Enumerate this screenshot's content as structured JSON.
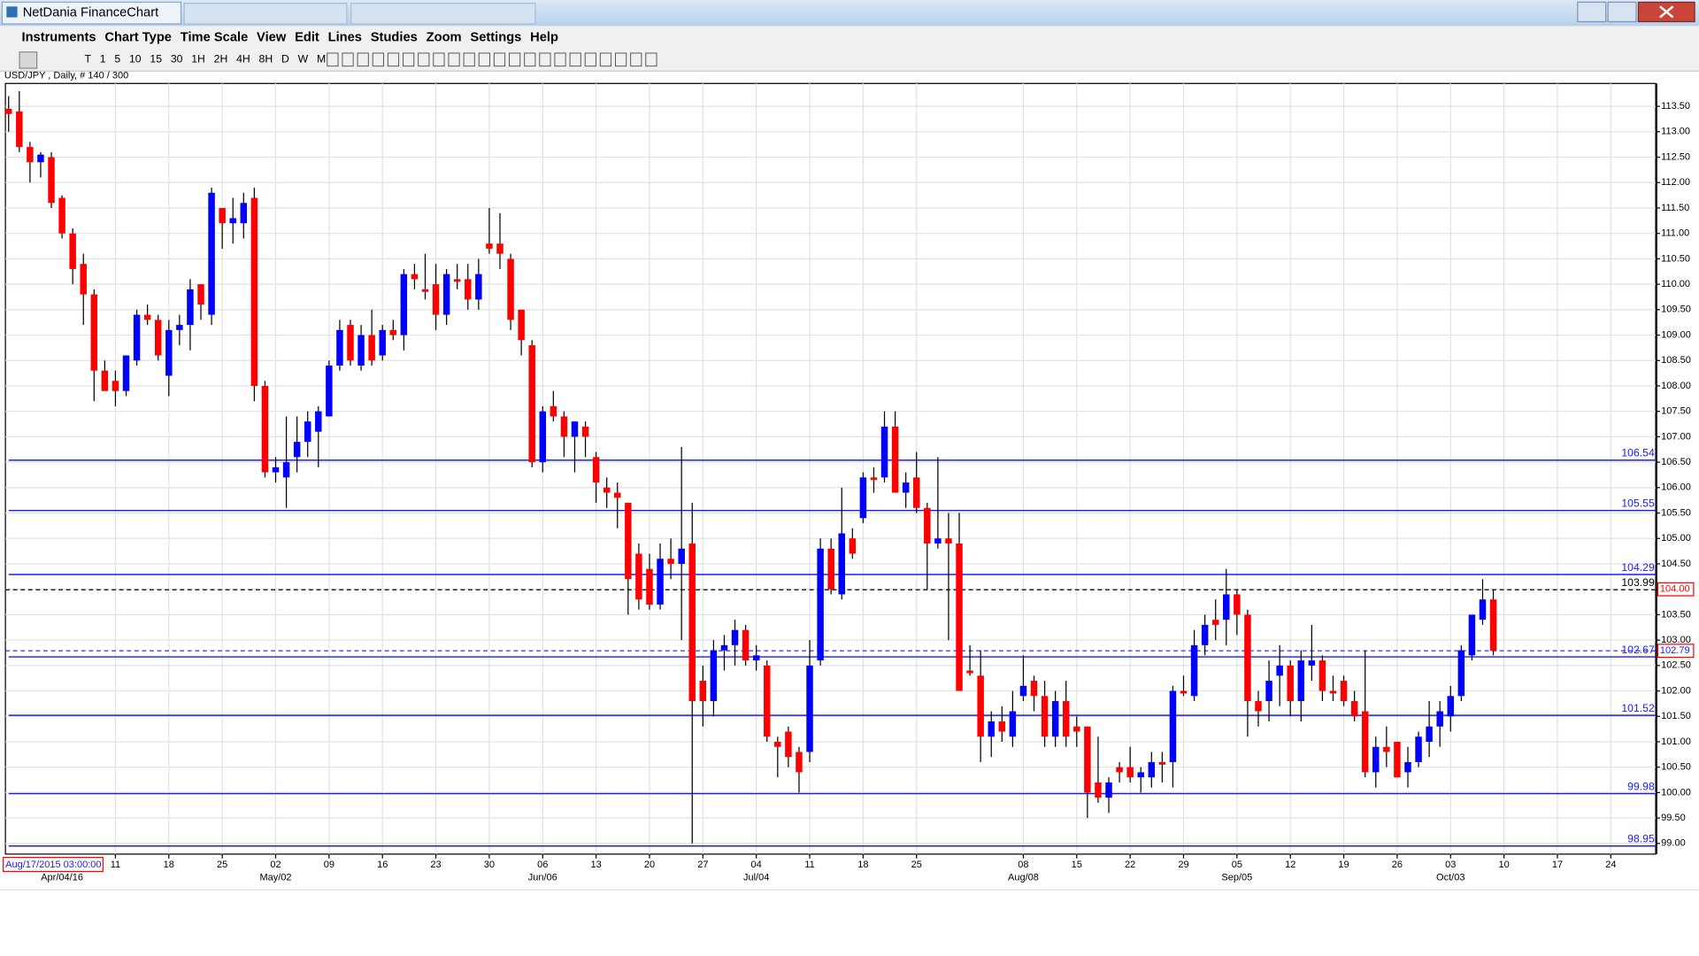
{
  "window": {
    "title": "NetDania FinanceChart"
  },
  "menu": [
    "Instruments",
    "Chart Type",
    "Time Scale",
    "View",
    "Edit",
    "Lines",
    "Studies",
    "Zoom",
    "Settings",
    "Help"
  ],
  "toolbar": [
    "T",
    "1",
    "5",
    "10",
    "15",
    "30",
    "1H",
    "2H",
    "4H",
    "8H",
    "D",
    "W",
    "M"
  ],
  "chart_info": "USD/JPY , Daily, # 140 / 300",
  "cursor_date": "Aug/17/2015 03:00:00",
  "chart_data": {
    "type": "candlestick",
    "up_color": "#0000ff",
    "down_color": "#ff0000",
    "grid": true,
    "categories": [
      null,
      null,
      null,
      null,
      null,
      null,
      null,
      null,
      null,
      null,
      null,
      null,
      null,
      null,
      null,
      null,
      null,
      null,
      null,
      null,
      null,
      null,
      null,
      null,
      null,
      null,
      null,
      null,
      null,
      null,
      null,
      null,
      null,
      null,
      null,
      null,
      null,
      null,
      null,
      null,
      null,
      null,
      null,
      null,
      null,
      null,
      null,
      null,
      null,
      null,
      null,
      null,
      null,
      null,
      null,
      null,
      null,
      null,
      null,
      null,
      null,
      null,
      null,
      null,
      null,
      null,
      null,
      null,
      null,
      null,
      null,
      null,
      null,
      null,
      null,
      null,
      null,
      null,
      null,
      null,
      null,
      null,
      null,
      null,
      null,
      null,
      null,
      null,
      null,
      null,
      null,
      null,
      null,
      null,
      null,
      null,
      null,
      null,
      null,
      null,
      null,
      null,
      null,
      null,
      null,
      null,
      null,
      null,
      null,
      null,
      null,
      null,
      null,
      null,
      null,
      null,
      null,
      null,
      null,
      null,
      null,
      null,
      null,
      null,
      null,
      null,
      null,
      null,
      null,
      null,
      null,
      null,
      null,
      null,
      null,
      null,
      null,
      null,
      null,
      null
    ],
    "open": [
      113.45,
      113.4,
      112.7,
      112.4,
      112.5,
      111.7,
      111.0,
      110.4,
      109.8,
      108.3,
      108.1,
      107.9,
      108.5,
      109.4,
      109.3,
      108.2,
      109.1,
      109.2,
      110.0,
      109.4,
      111.5,
      111.2,
      111.2,
      111.7,
      108.0,
      106.3,
      106.2,
      106.6,
      106.9,
      107.1,
      107.4,
      108.4,
      109.2,
      108.4,
      109.0,
      108.6,
      109.1,
      109.0,
      110.2,
      109.9,
      110.0,
      109.4,
      110.1,
      110.1,
      109.7,
      110.8,
      110.8,
      110.5,
      109.5,
      108.8,
      106.5,
      107.6,
      107.4,
      107.0,
      107.2,
      106.6,
      106.0,
      105.9,
      105.7,
      104.7,
      104.4,
      103.7,
      104.6,
      104.5,
      104.9,
      102.2,
      101.8,
      102.8,
      102.9,
      103.2,
      102.6,
      102.5,
      101.0,
      101.2,
      100.8,
      100.8,
      102.6,
      104.8,
      103.9,
      105.0,
      105.4,
      106.2,
      106.2,
      107.2,
      105.9,
      106.2,
      105.6,
      104.9,
      105.0,
      104.9,
      102.4,
      102.3,
      101.1,
      101.4,
      101.1,
      101.9,
      102.2,
      101.9,
      101.1,
      101.8,
      101.3,
      101.3,
      100.2,
      99.9,
      100.5,
      100.5,
      100.3,
      100.3,
      100.6,
      100.6,
      102.0,
      101.9,
      102.9,
      103.4,
      103.4,
      103.9,
      103.5,
      101.8,
      101.8,
      102.3,
      102.5,
      101.8,
      102.5,
      102.6,
      102.0,
      102.2,
      101.8,
      101.6,
      100.4,
      100.9,
      101.0,
      100.4,
      100.6,
      101.0,
      101.3,
      101.5,
      101.9,
      102.7,
      103.4,
      103.8
    ],
    "high": [
      113.7,
      113.8,
      112.8,
      112.6,
      112.6,
      111.75,
      111.1,
      110.6,
      109.9,
      108.5,
      108.3,
      108.6,
      109.5,
      109.6,
      109.4,
      109.3,
      109.4,
      110.1,
      110.0,
      111.9,
      111.5,
      111.7,
      111.8,
      111.9,
      108.1,
      106.6,
      107.4,
      107.4,
      107.5,
      107.6,
      108.5,
      109.3,
      109.3,
      109.2,
      109.5,
      109.2,
      109.3,
      110.3,
      110.4,
      110.6,
      110.4,
      110.3,
      110.4,
      110.4,
      110.5,
      111.5,
      111.4,
      110.6,
      109.5,
      108.9,
      107.6,
      107.9,
      107.5,
      107.3,
      107.3,
      106.7,
      106.2,
      106.1,
      105.7,
      104.9,
      104.7,
      104.9,
      105.0,
      106.8,
      105.7,
      102.5,
      103.0,
      103.1,
      103.4,
      103.3,
      102.9,
      102.6,
      101.1,
      101.3,
      100.9,
      103.0,
      105.0,
      105.0,
      106.0,
      105.2,
      106.3,
      106.4,
      107.5,
      107.5,
      106.3,
      106.7,
      105.7,
      106.6,
      105.5,
      105.5,
      102.9,
      102.8,
      101.6,
      101.7,
      102.0,
      102.7,
      102.3,
      102.2,
      102.0,
      102.2,
      101.5,
      101.3,
      101.1,
      100.3,
      100.6,
      100.9,
      100.5,
      100.8,
      100.8,
      102.1,
      102.3,
      103.2,
      103.5,
      103.8,
      104.4,
      104.0,
      103.6,
      102.0,
      102.6,
      102.9,
      102.6,
      102.8,
      103.3,
      102.7,
      102.3,
      102.3,
      102.0,
      102.8,
      101.1,
      101.3,
      101.0,
      100.9,
      101.2,
      101.8,
      101.8,
      102.1,
      102.9,
      103.5,
      104.2,
      104.0
    ],
    "low": [
      113.0,
      112.6,
      112.0,
      112.1,
      111.5,
      110.9,
      110.0,
      109.2,
      107.7,
      107.9,
      107.6,
      107.8,
      108.4,
      109.2,
      108.5,
      107.8,
      108.8,
      108.7,
      109.3,
      109.2,
      110.7,
      110.8,
      110.9,
      107.7,
      106.2,
      106.1,
      105.6,
      106.3,
      106.6,
      106.4,
      107.4,
      108.3,
      108.4,
      108.3,
      108.4,
      108.5,
      108.9,
      108.7,
      109.9,
      109.7,
      109.1,
      109.2,
      109.9,
      109.5,
      109.5,
      110.6,
      110.3,
      109.1,
      108.6,
      106.4,
      106.3,
      107.3,
      106.6,
      106.3,
      106.6,
      105.7,
      105.6,
      105.2,
      103.5,
      103.6,
      103.6,
      103.6,
      104.2,
      103.0,
      99.0,
      101.3,
      101.5,
      102.4,
      102.5,
      102.5,
      102.4,
      101.0,
      100.3,
      100.5,
      100.0,
      100.6,
      102.5,
      103.9,
      103.8,
      104.6,
      105.3,
      105.9,
      106.1,
      105.9,
      105.6,
      105.5,
      104.0,
      104.8,
      103.0,
      102.0,
      102.3,
      100.6,
      100.7,
      101.0,
      100.9,
      101.8,
      101.6,
      100.9,
      100.9,
      100.9,
      100.9,
      99.5,
      99.8,
      99.6,
      100.2,
      100.2,
      100.0,
      100.1,
      100.2,
      100.1,
      101.9,
      101.8,
      102.7,
      103.0,
      102.9,
      103.1,
      101.1,
      101.3,
      101.4,
      101.7,
      101.5,
      101.4,
      102.2,
      101.8,
      101.8,
      101.7,
      101.4,
      100.3,
      100.1,
      100.5,
      100.3,
      100.1,
      100.5,
      100.7,
      100.9,
      101.2,
      101.8,
      102.6,
      103.3,
      102.7
    ],
    "close": [
      113.35,
      112.7,
      112.4,
      112.55,
      111.6,
      111.0,
      110.3,
      109.8,
      108.3,
      107.9,
      107.9,
      108.6,
      109.4,
      109.3,
      108.6,
      109.1,
      109.2,
      109.9,
      109.6,
      111.8,
      111.2,
      111.3,
      111.6,
      108.0,
      106.3,
      106.4,
      106.5,
      106.9,
      107.3,
      107.5,
      108.4,
      109.1,
      108.5,
      109.0,
      108.5,
      109.1,
      109.0,
      110.2,
      110.1,
      109.85,
      109.4,
      110.2,
      110.05,
      109.7,
      110.2,
      110.7,
      110.6,
      109.3,
      108.9,
      106.5,
      107.5,
      107.4,
      107.0,
      107.3,
      107.0,
      106.1,
      105.9,
      105.8,
      104.2,
      103.8,
      103.7,
      104.6,
      104.5,
      104.8,
      101.8,
      101.8,
      102.8,
      102.9,
      103.2,
      102.6,
      102.7,
      101.1,
      100.9,
      100.7,
      100.4,
      102.5,
      104.8,
      104.0,
      105.1,
      104.7,
      106.2,
      106.15,
      107.2,
      105.9,
      106.1,
      105.6,
      104.9,
      105.0,
      104.9,
      102.0,
      102.35,
      101.1,
      101.4,
      101.2,
      101.6,
      102.1,
      101.9,
      101.1,
      101.8,
      101.1,
      101.2,
      100.0,
      99.9,
      100.2,
      100.4,
      100.3,
      100.4,
      100.6,
      100.55,
      102.0,
      101.95,
      102.9,
      103.3,
      103.3,
      103.9,
      103.5,
      101.8,
      101.6,
      102.2,
      102.5,
      101.8,
      102.6,
      102.6,
      102.0,
      101.95,
      101.8,
      101.5,
      100.4,
      100.9,
      100.8,
      100.3,
      100.6,
      101.1,
      101.3,
      101.6,
      101.9,
      102.8,
      103.5,
      103.8,
      102.79
    ],
    "xlim": [
      -0.3,
      154.2
    ],
    "xticks": [
      {
        "value": 10,
        "label": "11"
      },
      {
        "value": 15,
        "label": "18"
      },
      {
        "value": 20,
        "label": "25"
      },
      {
        "value": 25,
        "label": "02"
      },
      {
        "value": 30,
        "label": "09"
      },
      {
        "value": 35,
        "label": "16"
      },
      {
        "value": 40,
        "label": "23"
      },
      {
        "value": 45,
        "label": "30"
      },
      {
        "value": 50,
        "label": "06"
      },
      {
        "value": 55,
        "label": "13"
      },
      {
        "value": 60,
        "label": "20"
      },
      {
        "value": 65,
        "label": "27"
      },
      {
        "value": 70,
        "label": "04"
      },
      {
        "value": 75,
        "label": "11"
      },
      {
        "value": 80,
        "label": "18"
      },
      {
        "value": 85,
        "label": "25"
      },
      {
        "value": 95,
        "label": "08"
      },
      {
        "value": 100,
        "label": "15"
      },
      {
        "value": 105,
        "label": "22"
      },
      {
        "value": 110,
        "label": "29"
      },
      {
        "value": 115,
        "label": "05"
      },
      {
        "value": 120,
        "label": "12"
      },
      {
        "value": 125,
        "label": "19"
      },
      {
        "value": 130,
        "label": "26"
      },
      {
        "value": 135,
        "label": "03"
      },
      {
        "value": 140,
        "label": "10"
      },
      {
        "value": 145,
        "label": "17"
      },
      {
        "value": 150,
        "label": "24"
      }
    ],
    "xticks_month": [
      {
        "value": 5,
        "label": "Apr/04/16"
      },
      {
        "value": 25,
        "label": "May/02"
      },
      {
        "value": 50,
        "label": "Jun/06"
      },
      {
        "value": 70,
        "label": "Jul/04"
      },
      {
        "value": 95,
        "label": "Aug/08"
      },
      {
        "value": 115,
        "label": "Sep/05"
      },
      {
        "value": 135,
        "label": "Oct/03"
      }
    ],
    "ylim": [
      98.79,
      113.95
    ],
    "yticks": [
      {
        "value": 99,
        "label": "99.00"
      },
      {
        "value": 99.5,
        "label": "99.50"
      },
      {
        "value": 100,
        "label": "100.00"
      },
      {
        "value": 100.5,
        "label": "100.50"
      },
      {
        "value": 101,
        "label": "101.00"
      },
      {
        "value": 101.5,
        "label": "101.50"
      },
      {
        "value": 102,
        "label": "102.00"
      },
      {
        "value": 102.5,
        "label": "102.50"
      },
      {
        "value": 103,
        "label": "103.00"
      },
      {
        "value": 103.5,
        "label": "103.50"
      },
      {
        "value": 104,
        "label": "104.00"
      },
      {
        "value": 104.5,
        "label": "104.50"
      },
      {
        "value": 105,
        "label": "105.00"
      },
      {
        "value": 105.5,
        "label": "105.50"
      },
      {
        "value": 106,
        "label": "106.00"
      },
      {
        "value": 106.5,
        "label": "106.50"
      },
      {
        "value": 107,
        "label": "107.00"
      },
      {
        "value": 107.5,
        "label": "107.50"
      },
      {
        "value": 108,
        "label": "108.00"
      },
      {
        "value": 108.5,
        "label": "108.50"
      },
      {
        "value": 109,
        "label": "109.00"
      },
      {
        "value": 109.5,
        "label": "109.50"
      },
      {
        "value": 110,
        "label": "110.00"
      },
      {
        "value": 110.5,
        "label": "110.50"
      },
      {
        "value": 111,
        "label": "111.00"
      },
      {
        "value": 111.5,
        "label": "111.50"
      },
      {
        "value": 112,
        "label": "112.00"
      },
      {
        "value": 112.5,
        "label": "112.50"
      },
      {
        "value": 113,
        "label": "113.00"
      },
      {
        "value": 113.5,
        "label": "113.50"
      }
    ],
    "hlines": [
      106.54,
      105.55,
      104.29,
      102.67,
      101.52,
      99.98,
      98.95
    ],
    "hline_color": "#1a1aff",
    "close_line": 103.99,
    "bid_line": 102.79,
    "price_box": {
      "value": 104,
      "label": "104.00"
    }
  }
}
